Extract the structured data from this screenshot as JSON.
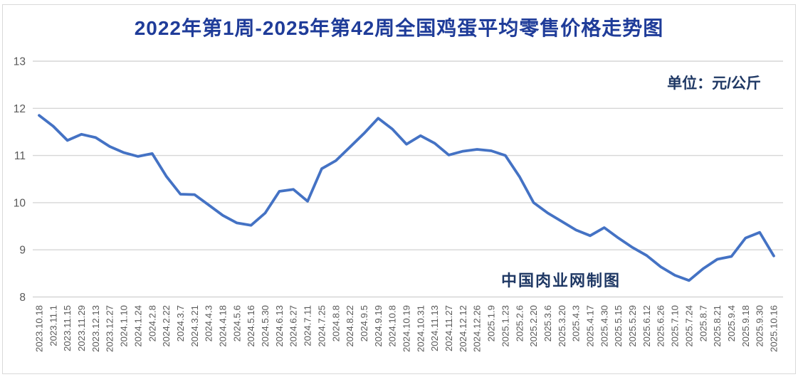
{
  "title": "2022年第1周-2025年第42周全国鸡蛋平均零售价格走势图",
  "unit_label": "单位：元/公斤",
  "watermark": "中国肉业网制图",
  "colors": {
    "line": "#4472C4",
    "title_text": "#1f3c99",
    "annotation_text": "#1f3864",
    "grid": "#d6d6d6",
    "axis_text": "#595959",
    "frame_border": "#d9d9d9",
    "background": "#ffffff"
  },
  "chart_data": {
    "type": "line",
    "title": "2022年第1周-2025年第42周全国鸡蛋平均零售价格走势图",
    "ylabel": "",
    "xlabel": "",
    "unit": "元/公斤",
    "ylim": [
      8,
      13
    ],
    "yticks": [
      8,
      9,
      10,
      11,
      12,
      13
    ],
    "grid": "horizontal",
    "legend": "none",
    "categories": [
      "2023.10.18",
      "2023.11.1",
      "2023.11.15",
      "2023.11.29",
      "2023.12.13",
      "2023.12.27",
      "2024.1.10",
      "2024.1.24",
      "2024.2.8",
      "2024.2.22",
      "2024.3.7",
      "2024.3.21",
      "2024.4.3",
      "2024.4.18",
      "2024.5.6",
      "2024.5.16",
      "2024.5.30",
      "2024.6.13",
      "2024.6.27",
      "2024.7.11",
      "2024.7.25",
      "2024.8.8",
      "2024.8.22",
      "2024.9.5",
      "2024.9.19",
      "2024.10.8",
      "2024.10.19",
      "2024.10.31",
      "2024.11.13",
      "2024.11.27",
      "2024.12.12",
      "2024.12.26",
      "2025.1.9",
      "2025.1.23",
      "2025.2.6",
      "2025.2.20",
      "2025.3.6",
      "2025.3.20",
      "2025.4.3",
      "2025.4.17",
      "2025.4.30",
      "2025.5.15",
      "2025.5.29",
      "2025.6.12",
      "2025.6.26",
      "2025.7.10",
      "2025.7.24",
      "2025.8.7",
      "2025.8.21",
      "2025.9.4",
      "2025.9.18",
      "2025.9.30",
      "2025.10.16"
    ],
    "values": [
      11.85,
      11.62,
      11.32,
      11.45,
      11.38,
      11.19,
      11.06,
      10.98,
      11.04,
      10.56,
      10.18,
      10.17,
      9.95,
      9.73,
      9.57,
      9.52,
      9.78,
      10.24,
      10.28,
      10.03,
      10.72,
      10.89,
      11.18,
      11.47,
      11.79,
      11.56,
      11.24,
      11.42,
      11.26,
      11.01,
      11.09,
      11.13,
      11.1,
      11.0,
      10.55,
      10.0,
      9.78,
      9.6,
      9.42,
      9.3,
      9.47,
      9.25,
      9.05,
      8.88,
      8.64,
      8.46,
      8.35,
      8.6,
      8.8,
      8.86,
      9.25,
      9.37,
      8.87
    ]
  }
}
